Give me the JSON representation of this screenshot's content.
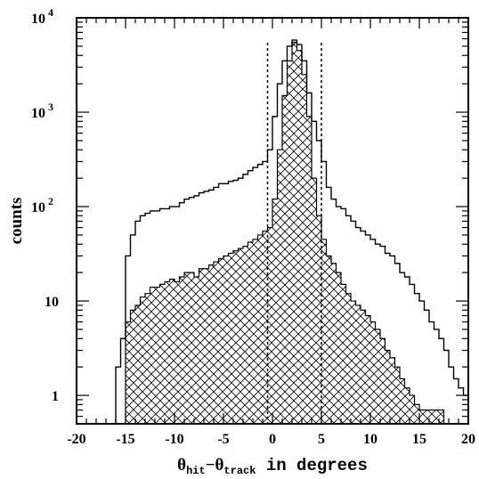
{
  "chart_data": {
    "type": "step-histogram",
    "title": "",
    "xlabel": {
      "symbol": "θ",
      "sub1": "hit",
      "minus": "−",
      "sub2": "track",
      "suffix": " in degrees"
    },
    "ylabel": "counts",
    "xlim": [
      -20,
      20
    ],
    "ylim": [
      0.5,
      10000
    ],
    "yscale": "log",
    "x_ticks": [
      -20,
      -15,
      -10,
      -5,
      0,
      5,
      10,
      15,
      20
    ],
    "y_ticks": [
      {
        "value": 1,
        "label": "1",
        "base": "1",
        "exp": ""
      },
      {
        "value": 10,
        "label": "10",
        "base": "10",
        "exp": ""
      },
      {
        "value": 100,
        "label": "10 2",
        "base": "10",
        "exp": "2"
      },
      {
        "value": 1000,
        "label": "10 3",
        "base": "10",
        "exp": "3"
      },
      {
        "value": 10000,
        "label": "10 4",
        "base": "10",
        "exp": "4"
      }
    ],
    "cut_lines": [
      -0.5,
      5
    ],
    "series": [
      {
        "style": "outline",
        "x": [
          -16,
          -15.5,
          -15,
          -14.5,
          -14,
          -13.5,
          -13,
          -12.5,
          -12,
          -11.5,
          -11,
          -10.5,
          -10,
          -9.5,
          -9,
          -8.5,
          -8,
          -7.5,
          -7,
          -6.5,
          -6,
          -5.5,
          -5,
          -4.5,
          -4,
          -3.5,
          -3,
          -2.5,
          -2,
          -1.5,
          -1,
          -0.5,
          0,
          0.5,
          1,
          1.5,
          2,
          2.5,
          3,
          3.5,
          4,
          4.5,
          5,
          5.5,
          6,
          6.5,
          7,
          7.5,
          8,
          8.5,
          9,
          9.5,
          10,
          10.5,
          11,
          11.5,
          12,
          12.5,
          13,
          13.5,
          14,
          14.5,
          15,
          15.5,
          16,
          16.5,
          17,
          17.5,
          18,
          18.5,
          19,
          19.5
        ],
        "values": [
          2,
          4,
          30,
          50,
          70,
          80,
          85,
          90,
          90,
          95,
          95,
          100,
          100,
          110,
          120,
          125,
          130,
          140,
          145,
          150,
          160,
          175,
          175,
          185,
          190,
          200,
          220,
          240,
          260,
          280,
          300,
          400,
          900,
          2000,
          3500,
          5000,
          5800,
          5200,
          3500,
          1600,
          800,
          500,
          300,
          160,
          120,
          100,
          95,
          80,
          70,
          60,
          55,
          50,
          45,
          40,
          38,
          32,
          30,
          25,
          20,
          18,
          15,
          12,
          10,
          8,
          6,
          5,
          4,
          3,
          2,
          1.5,
          1.2,
          1
        ]
      },
      {
        "style": "hatched",
        "x": [
          -15,
          -14.5,
          -14,
          -13.5,
          -13,
          -12.5,
          -12,
          -11.5,
          -11,
          -10.5,
          -10,
          -9.5,
          -9,
          -8.5,
          -8,
          -7.5,
          -7,
          -6.5,
          -6,
          -5.5,
          -5,
          -4.5,
          -4,
          -3.5,
          -3,
          -2.5,
          -2,
          -1.5,
          -1,
          -0.5,
          0,
          0.5,
          1,
          1.5,
          2,
          2.5,
          3,
          3.5,
          4,
          4.5,
          5,
          5.5,
          6,
          6.5,
          7,
          7.5,
          8,
          8.5,
          9,
          9.5,
          10,
          10.5,
          11,
          11.5,
          12,
          12.5,
          13,
          13.5,
          14,
          14.5,
          15,
          15.5,
          16,
          16.5,
          17,
          17.5
        ],
        "values": [
          6,
          8,
          9,
          11,
          12,
          14,
          14,
          15,
          16,
          17,
          16,
          18,
          20,
          20,
          18,
          22,
          22,
          24,
          26,
          28,
          30,
          32,
          34,
          36,
          38,
          42,
          45,
          50,
          55,
          60,
          120,
          400,
          1500,
          3500,
          5500,
          4500,
          2500,
          900,
          200,
          80,
          45,
          30,
          25,
          20,
          15,
          12,
          10,
          9,
          8,
          7,
          6,
          5,
          4,
          3,
          2.5,
          2,
          1.5,
          1.2,
          1,
          0.8,
          0.7,
          0.7,
          0.7,
          0.7,
          0.7,
          0.5
        ]
      }
    ]
  }
}
